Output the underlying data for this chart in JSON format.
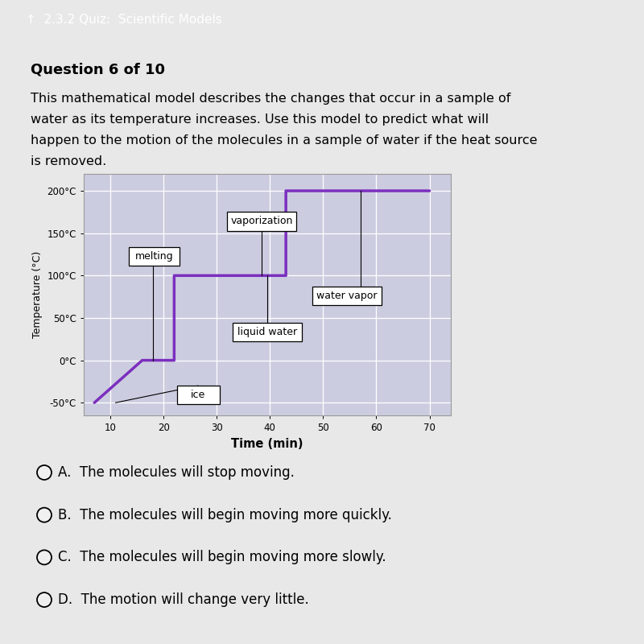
{
  "title_bar": "2.3.2 Quiz:  Scientific Models",
  "question": "Question 6 of 10",
  "desc_lines": [
    "This mathematical model describes the changes that occur in a sample of",
    "water as its temperature increases. Use this model to predict what will",
    "happen to the motion of the molecules in a sample of water if the heat source",
    "is removed."
  ],
  "answers": [
    "A.  The molecules will stop moving.",
    "B.  The molecules will begin moving more quickly.",
    "C.  The molecules will begin moving more slowly.",
    "D.  The motion will change very little."
  ],
  "graph_bg_color": "#cccce0",
  "line_color": "#7b2fbe",
  "line_width": 2.5,
  "xlabel": "Time (min)",
  "ylabel": "Temperature (°C)",
  "x_ticks": [
    10,
    20,
    30,
    40,
    50,
    60,
    70
  ],
  "y_ticks": [
    -50,
    0,
    50,
    100,
    150,
    200
  ],
  "y_tick_labels": [
    "-50°C",
    "0°C",
    "50°C",
    "100°C",
    "150°C",
    "200°C"
  ],
  "xlim": [
    5,
    74
  ],
  "ylim": [
    -65,
    220
  ],
  "line_x": [
    7,
    16,
    22,
    22,
    33,
    43,
    43,
    58,
    70
  ],
  "line_y": [
    -50,
    0,
    0,
    100,
    100,
    100,
    200,
    200,
    200
  ],
  "page_bg": "#e8e8e8",
  "header_bg": "#006b6b",
  "header_text_color": "#ffffff",
  "body_bg": "#e8e8e8",
  "grid_color": "#bbbbcc",
  "white_grid": true
}
